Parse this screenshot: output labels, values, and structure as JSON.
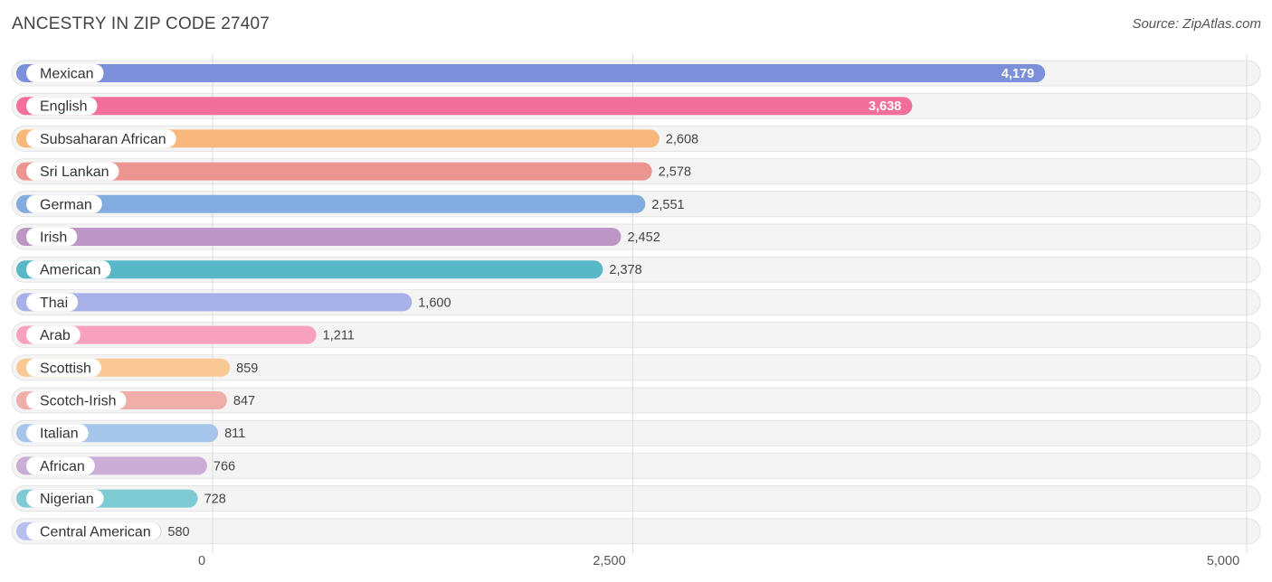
{
  "chart_data": {
    "type": "bar",
    "orientation": "horizontal",
    "title": "ANCESTRY IN ZIP CODE 27407",
    "source": "Source: ZipAtlas.com",
    "categories": [
      "Mexican",
      "English",
      "Subsaharan African",
      "Sri Lankan",
      "German",
      "Irish",
      "American",
      "Thai",
      "Arab",
      "Scottish",
      "Scotch-Irish",
      "Italian",
      "African",
      "Nigerian",
      "Central American"
    ],
    "values": [
      4179,
      3638,
      2608,
      2578,
      2551,
      2452,
      2378,
      1600,
      1211,
      859,
      847,
      811,
      766,
      728,
      580
    ],
    "value_labels": [
      "4,179",
      "3,638",
      "2,608",
      "2,578",
      "2,551",
      "2,452",
      "2,378",
      "1,600",
      "1,211",
      "859",
      "847",
      "811",
      "766",
      "728",
      "580"
    ],
    "colors": [
      "#7b8fdb",
      "#f26f9c",
      "#f8b87c",
      "#ec9490",
      "#82acdf",
      "#be96c6",
      "#58b8c8",
      "#a7b0e7",
      "#f7a1be",
      "#f9c895",
      "#f0aeaa",
      "#a5c5ea",
      "#cbaed6",
      "#7ecbd4",
      "#b7bff0"
    ],
    "xlim": [
      0,
      5000
    ],
    "xticks": [
      0,
      2500,
      5000
    ],
    "xtick_labels": [
      "0",
      "2,500",
      "5,000"
    ],
    "grid": true,
    "xlabel": "",
    "ylabel": ""
  }
}
